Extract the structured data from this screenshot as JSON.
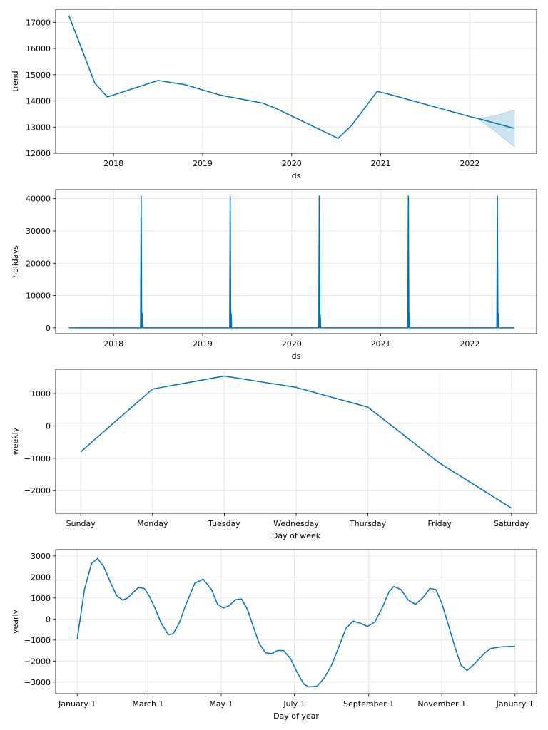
{
  "chart_data": [
    {
      "type": "line",
      "xlabel": "ds",
      "ylabel": "trend",
      "x_type": "year",
      "xlim": [
        2017.35,
        2022.75
      ],
      "ylim": [
        12000,
        17500
      ],
      "xticks": [
        2018,
        2019,
        2020,
        2021,
        2022
      ],
      "xtick_labels": [
        "2018",
        "2019",
        "2020",
        "2021",
        "2022"
      ],
      "yticks": [
        12000,
        13000,
        14000,
        15000,
        16000,
        17000
      ],
      "ytick_labels": [
        "12000",
        "13000",
        "14000",
        "15000",
        "16000",
        "17000"
      ],
      "grid": true,
      "series": [
        {
          "x": [
            2017.5,
            2017.79,
            2017.93,
            2018.5,
            2018.8,
            2019.2,
            2019.67,
            2019.8,
            2020.52,
            2020.67,
            2020.96,
            2021.1,
            2022.0,
            2022.1,
            2022.5
          ],
          "y": [
            17250,
            14680,
            14150,
            14780,
            14620,
            14220,
            13920,
            13750,
            12570,
            13050,
            14360,
            14250,
            13400,
            13320,
            12950
          ]
        }
      ],
      "band": {
        "x": [
          2022.1,
          2022.2,
          2022.3,
          2022.4,
          2022.5
        ],
        "lower": [
          13310,
          13050,
          12800,
          12520,
          12250
        ],
        "upper": [
          13330,
          13380,
          13450,
          13550,
          13650
        ]
      }
    },
    {
      "type": "line",
      "xlabel": "ds",
      "ylabel": "holidays",
      "x_type": "year",
      "xlim": [
        2017.35,
        2022.75
      ],
      "ylim": [
        -1800,
        42800
      ],
      "xticks": [
        2018,
        2019,
        2020,
        2021,
        2022
      ],
      "xtick_labels": [
        "2018",
        "2019",
        "2020",
        "2021",
        "2022"
      ],
      "yticks": [
        0,
        10000,
        20000,
        30000,
        40000
      ],
      "ytick_labels": [
        "0",
        "10000",
        "20000",
        "30000",
        "40000"
      ],
      "grid": true,
      "baseline_x": [
        2017.5,
        2022.5
      ],
      "spikes": [
        {
          "x": 2018.31,
          "peak": 40800,
          "secondary": 4500
        },
        {
          "x": 2019.31,
          "peak": 40800,
          "secondary": 4500
        },
        {
          "x": 2020.31,
          "peak": 40800,
          "secondary": 4000
        },
        {
          "x": 2021.31,
          "peak": 40800,
          "secondary": 4500
        },
        {
          "x": 2022.31,
          "peak": 40800,
          "secondary": 4500
        }
      ]
    },
    {
      "type": "line",
      "xlabel": "Day of week",
      "ylabel": "weekly",
      "x_type": "category",
      "xlim": [
        -0.35,
        6.35
      ],
      "ylim": [
        -2700,
        1750
      ],
      "xticks": [
        0,
        1,
        2,
        3,
        4,
        5,
        6
      ],
      "xtick_labels": [
        "Sunday",
        "Monday",
        "Tuesday",
        "Wednesday",
        "Thursday",
        "Friday",
        "Saturday"
      ],
      "yticks": [
        -2000,
        -1000,
        0,
        1000
      ],
      "ytick_labels": [
        "−2000",
        "−1000",
        "0",
        "1000"
      ],
      "grid": true,
      "series": [
        {
          "x": [
            0,
            1,
            2,
            3,
            4,
            5,
            6
          ],
          "y": [
            -800,
            1140,
            1540,
            1190,
            580,
            -1150,
            -2540
          ]
        }
      ]
    },
    {
      "type": "line",
      "xlabel": "Day of year",
      "ylabel": "yearly",
      "x_type": "day",
      "xlim": [
        -18,
        383
      ],
      "ylim": [
        -3550,
        3300
      ],
      "xticks": [
        0,
        59,
        120,
        181,
        243,
        304,
        365
      ],
      "xtick_labels": [
        "January 1",
        "March 1",
        "May 1",
        "July 1",
        "September 1",
        "November 1",
        "January 1"
      ],
      "yticks": [
        -3000,
        -2000,
        -1000,
        0,
        1000,
        2000,
        3000
      ],
      "ytick_labels": [
        "−3000",
        "−2000",
        "−1000",
        "0",
        "1000",
        "2000",
        "3000"
      ],
      "grid": true,
      "series": [
        {
          "x": [
            0,
            6,
            12,
            17,
            22,
            28,
            33,
            38,
            42,
            51,
            56,
            60,
            65,
            70,
            76,
            80,
            85,
            90,
            98,
            105,
            112,
            117,
            122,
            127,
            132,
            137,
            142,
            147,
            152,
            157,
            162,
            167,
            172,
            178,
            183,
            189,
            193,
            200,
            206,
            212,
            218,
            224,
            230,
            236,
            242,
            248,
            254,
            260,
            264,
            270,
            276,
            282,
            288,
            294,
            299,
            304,
            309,
            315,
            320,
            325,
            330,
            335,
            340,
            345,
            350,
            355,
            359,
            365
          ],
          "y": [
            -950,
            1400,
            2650,
            2880,
            2500,
            1700,
            1100,
            900,
            1000,
            1500,
            1450,
            1100,
            500,
            -200,
            -750,
            -700,
            -200,
            600,
            1700,
            1900,
            1400,
            700,
            520,
            650,
            920,
            950,
            450,
            -400,
            -1200,
            -1600,
            -1650,
            -1500,
            -1500,
            -1900,
            -2500,
            -3100,
            -3230,
            -3200,
            -2800,
            -2200,
            -1350,
            -450,
            -100,
            -200,
            -350,
            -150,
            500,
            1300,
            1550,
            1400,
            900,
            700,
            1000,
            1450,
            1400,
            750,
            -200,
            -1350,
            -2200,
            -2450,
            -2200,
            -1900,
            -1600,
            -1400,
            -1350,
            -1320,
            -1310,
            -1300
          ]
        }
      ]
    }
  ]
}
